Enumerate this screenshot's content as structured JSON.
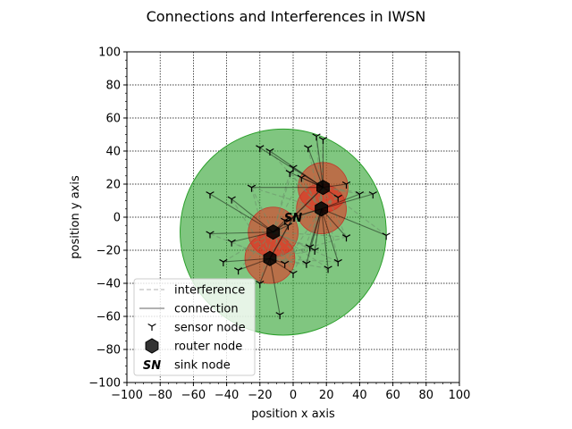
{
  "chart_data": {
    "type": "scatter",
    "title": "Connections and Interferences in IWSN",
    "xlabel": "position x axis",
    "ylabel": "position y axis",
    "xlim": [
      -100,
      100
    ],
    "ylim": [
      -100,
      100
    ],
    "xticks": [
      -100,
      -80,
      -60,
      -40,
      -20,
      0,
      20,
      40,
      60,
      80,
      100
    ],
    "yticks": [
      -100,
      -80,
      -60,
      -40,
      -20,
      0,
      20,
      40,
      60,
      80,
      100
    ],
    "xtick_labels": [
      "−100",
      "−80",
      "−60",
      "−40",
      "−20",
      "0",
      "20",
      "40",
      "60",
      "80",
      "100"
    ],
    "ytick_labels": [
      "−100",
      "−80",
      "−60",
      "−40",
      "−20",
      "0",
      "20",
      "40",
      "60",
      "80",
      "100"
    ],
    "grid": true,
    "legend_position": "lower-left",
    "colors": {
      "coverage": "#2ca02c",
      "router_range": "#e8291c",
      "connection": "#000000",
      "interference": "#6a8f6a",
      "node": "#000000",
      "router": "#333333"
    },
    "sink_node": {
      "x": 0,
      "y": 0,
      "label": "SN"
    },
    "coverage_radius": 62,
    "router_range_radius": 15,
    "routers": [
      {
        "x": 18,
        "y": 18
      },
      {
        "x": 17,
        "y": 5
      },
      {
        "x": -12,
        "y": -9
      },
      {
        "x": -14,
        "y": -25
      }
    ],
    "sensors": [
      {
        "x": -20,
        "y": 42,
        "router": 0
      },
      {
        "x": -14,
        "y": 40,
        "router": 0
      },
      {
        "x": 14,
        "y": 49,
        "router": 0
      },
      {
        "x": 18,
        "y": 47,
        "router": 0
      },
      {
        "x": 9,
        "y": 42,
        "router": 0
      },
      {
        "x": -25,
        "y": 18,
        "router": 0
      },
      {
        "x": 0,
        "y": 30,
        "router": 0
      },
      {
        "x": -2,
        "y": 27,
        "router": 0
      },
      {
        "x": 5,
        "y": 24,
        "router": 0
      },
      {
        "x": 32,
        "y": 20,
        "router": 0
      },
      {
        "x": 27,
        "y": 12,
        "router": 0
      },
      {
        "x": 40,
        "y": 14,
        "router": 1
      },
      {
        "x": 48,
        "y": 14,
        "router": 1
      },
      {
        "x": 56,
        "y": -11,
        "router": 1
      },
      {
        "x": 32,
        "y": -12,
        "router": 1
      },
      {
        "x": 10,
        "y": -18,
        "router": 1
      },
      {
        "x": 13,
        "y": -20,
        "router": 1
      },
      {
        "x": 21,
        "y": -31,
        "router": 1
      },
      {
        "x": 27,
        "y": -27,
        "router": 1
      },
      {
        "x": 8,
        "y": -28,
        "router": 1
      },
      {
        "x": -50,
        "y": 14,
        "router": 2
      },
      {
        "x": -37,
        "y": 11,
        "router": 2
      },
      {
        "x": -50,
        "y": -10,
        "router": 2
      },
      {
        "x": -37,
        "y": -15,
        "router": 2
      },
      {
        "x": -5,
        "y": -2,
        "router": 2
      },
      {
        "x": -3,
        "y": -5,
        "router": 2
      },
      {
        "x": -42,
        "y": -27,
        "router": 3
      },
      {
        "x": -33,
        "y": -32,
        "router": 3
      },
      {
        "x": -20,
        "y": -40,
        "router": 3
      },
      {
        "x": 0,
        "y": -34,
        "router": 3
      },
      {
        "x": -8,
        "y": -59,
        "router": 3
      },
      {
        "x": -5,
        "y": -28,
        "router": 3
      }
    ],
    "legend": [
      {
        "kind": "interference",
        "label": "interference"
      },
      {
        "kind": "connection",
        "label": "connection"
      },
      {
        "kind": "sensor",
        "label": "sensor node"
      },
      {
        "kind": "router",
        "label": "router node"
      },
      {
        "kind": "sink",
        "label": "sink node"
      }
    ]
  }
}
